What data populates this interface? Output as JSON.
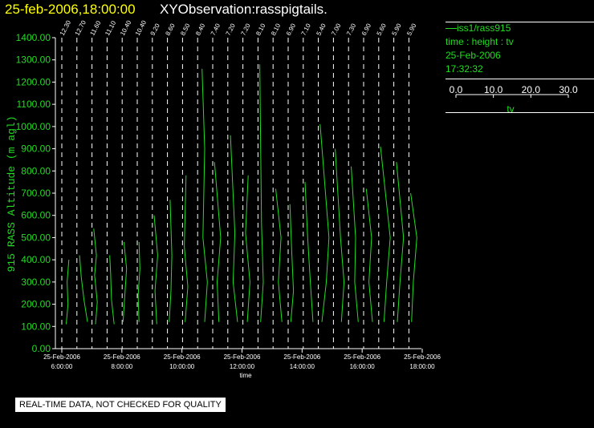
{
  "header": {
    "date_time": "25-feb-2006,18:00:00",
    "observation": "XYObservation:rasspigtails."
  },
  "legend": {
    "series": "iss1/rass915",
    "variables": "time : height : tv",
    "date": "25-Feb-2006",
    "time": "17:32:32",
    "scale_ticks": [
      "0.0",
      "10.0",
      "20.0",
      "30.0"
    ],
    "scale_label": "tv"
  },
  "disclaimer": "REAL-TIME DATA, NOT CHECKED FOR QUALITY",
  "colors": {
    "background": "#000000",
    "data_green": "#22dd22",
    "axis_white": "#ffffff",
    "title_yellow": "#ffff00"
  },
  "chart_data": {
    "type": "line",
    "title": "XYObservation:rasspigtails.",
    "ylabel": "915 RASS Altitude (m agl)",
    "xlabel": "time",
    "ylim": [
      0,
      1400
    ],
    "y_ticks": [
      "0.00",
      "100.00",
      "200.00",
      "300.00",
      "400.00",
      "500.00",
      "600.00",
      "700.00",
      "800.00",
      "900.00",
      "1000.00",
      "1100.00",
      "1200.00",
      "1300.00",
      "1400.00"
    ],
    "x_ticks": [
      {
        "date": "25-Feb-2006",
        "time": "6:00:00"
      },
      {
        "date": "25-Feb-2006",
        "time": "8:00:00"
      },
      {
        "date": "25-Feb-2006",
        "time": "10:00:00"
      },
      {
        "date": "25-Feb-2006",
        "time": "12:00:00"
      },
      {
        "date": "25-Feb-2006",
        "time": "14:00:00"
      },
      {
        "date": "25-Feb-2006",
        "time": "16:00:00"
      },
      {
        "date": "25-Feb-2006",
        "time": "18:00:00"
      }
    ],
    "profile_offsets": [
      "12.30",
      "12.70",
      "11.60",
      "11.10",
      "10.40",
      "10.40",
      "9.20",
      "8.60",
      "8.50",
      "8.40",
      "7.40",
      "7.20",
      "7.20",
      "8.10",
      "8.10",
      "6.90",
      "7.10",
      "5.40",
      "7.00",
      "7.30",
      "6.90",
      "5.60",
      "5.90",
      "5.90"
    ],
    "grid": "vertical dashed reference line per profile",
    "series": [
      {
        "name": "iss1/rass915",
        "profiles": [
          {
            "alt": [
              110,
              200,
              300,
              400
            ],
            "tv": [
              0.5,
              0.7,
              0.6,
              0.8
            ]
          },
          {
            "alt": [
              120,
              220,
              320,
              420
            ],
            "tv": [
              1.2,
              0.8,
              0.5,
              0.3
            ]
          },
          {
            "alt": [
              110,
              210,
              330,
              420,
              540
            ],
            "tv": [
              0.4,
              0.6,
              0.3,
              0.5,
              0.2
            ]
          },
          {
            "alt": [
              110,
              220,
              340,
              420
            ],
            "tv": [
              0.8,
              0.5,
              0.4,
              0.3
            ]
          },
          {
            "alt": [
              120,
              240,
              360,
              480
            ],
            "tv": [
              0.1,
              0.3,
              0.5,
              0.2
            ]
          },
          {
            "alt": [
              120,
              240,
              360,
              480
            ],
            "tv": [
              0.2,
              0.1,
              0.3,
              0.2
            ]
          },
          {
            "alt": [
              110,
              260,
              420,
              600
            ],
            "tv": [
              0.5,
              0.3,
              0.6,
              0.2
            ]
          },
          {
            "alt": [
              120,
              260,
              420,
              670
            ],
            "tv": [
              0.2,
              0.4,
              0.5,
              0.3
            ]
          },
          {
            "alt": [
              120,
              280,
              460,
              780
            ],
            "tv": [
              0.3,
              0.6,
              0.2,
              0.4
            ]
          },
          {
            "alt": [
              120,
              300,
              500,
              900,
              1260
            ],
            "tv": [
              0.8,
              1.1,
              0.6,
              0.8,
              0.5
            ]
          },
          {
            "alt": [
              120,
              300,
              500,
              840
            ],
            "tv": [
              0.7,
              0.5,
              0.9,
              0.2
            ]
          },
          {
            "alt": [
              120,
              300,
              520,
              960
            ],
            "tv": [
              1.1,
              0.6,
              0.8,
              0.3
            ]
          },
          {
            "alt": [
              120,
              300,
              520,
              780
            ],
            "tv": [
              0.5,
              0.8,
              0.3,
              0.6
            ]
          },
          {
            "alt": [
              120,
              300,
              560,
              1280
            ],
            "tv": [
              0.3,
              0.6,
              0.4,
              0.2
            ]
          },
          {
            "alt": [
              120,
              300,
              500,
              720
            ],
            "tv": [
              1.0,
              0.6,
              0.9,
              0.3
            ]
          },
          {
            "alt": [
              120,
              260,
              440,
              650
            ],
            "tv": [
              0.3,
              0.6,
              0.4,
              0.2
            ]
          },
          {
            "alt": [
              120,
              300,
              500,
              750
            ],
            "tv": [
              1.1,
              0.8,
              0.5,
              0.2
            ]
          },
          {
            "alt": [
              120,
              300,
              500,
              1010
            ],
            "tv": [
              0.4,
              0.9,
              1.2,
              0.2
            ]
          },
          {
            "alt": [
              120,
              300,
              500,
              900
            ],
            "tv": [
              0.9,
              1.2,
              0.8,
              0.2
            ]
          },
          {
            "alt": [
              120,
              300,
              500,
              820
            ],
            "tv": [
              1.1,
              0.7,
              0.8,
              0.3
            ]
          },
          {
            "alt": [
              120,
              300,
              500,
              720
            ],
            "tv": [
              1.0,
              0.6,
              0.9,
              0.3
            ]
          },
          {
            "alt": [
              120,
              300,
              500,
              910
            ],
            "tv": [
              0.6,
              0.9,
              1.3,
              0.2
            ]
          },
          {
            "alt": [
              120,
              300,
              500,
              840
            ],
            "tv": [
              0.4,
              0.7,
              1.1,
              0.3
            ]
          },
          {
            "alt": [
              120,
              300,
              500,
              700
            ],
            "tv": [
              0.3,
              0.5,
              0.9,
              0.2
            ]
          }
        ]
      }
    ]
  }
}
